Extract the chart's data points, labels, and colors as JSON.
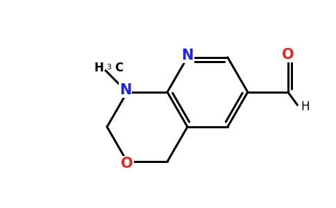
{
  "bg_color": "#ffffff",
  "bond_color": "#000000",
  "bond_width": 2.2,
  "atom_N_color": "#2222ee",
  "atom_O_color": "#ee2222",
  "atom_C_color": "#000000",
  "figsize": [
    4.84,
    3.0
  ],
  "dpi": 100,
  "xlim": [
    0,
    9.68
  ],
  "ylim": [
    0,
    6.0
  ]
}
